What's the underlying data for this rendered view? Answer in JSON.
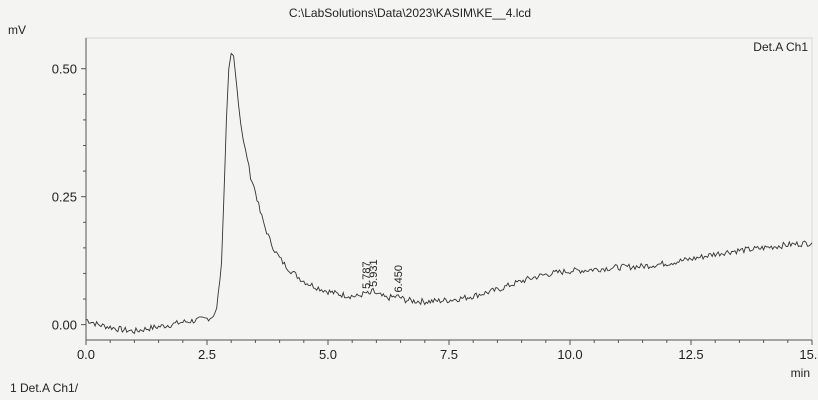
{
  "chart_data": {
    "type": "line",
    "title": "C:\\LabSolutions\\Data\\2023\\KASIM\\KE__4.lcd",
    "ylabel": "mV",
    "xlabel": "min",
    "channel_label": "Det.A Ch1",
    "footer": "1  Det.A Ch1/",
    "xlim": [
      0,
      15
    ],
    "ylim": [
      -0.03,
      0.56
    ],
    "x_ticks": [
      {
        "value": 0.0,
        "label": "0.0"
      },
      {
        "value": 2.5,
        "label": "2.5"
      },
      {
        "value": 5.0,
        "label": "5.0"
      },
      {
        "value": 7.5,
        "label": "7.5"
      },
      {
        "value": 10.0,
        "label": "10.0"
      },
      {
        "value": 12.5,
        "label": "12.5"
      },
      {
        "value": 15.0,
        "label": "15.0"
      }
    ],
    "y_ticks": [
      {
        "value": 0.0,
        "label": "0.00"
      },
      {
        "value": 0.25,
        "label": "0.25"
      },
      {
        "value": 0.5,
        "label": "0.50"
      }
    ],
    "peak_labels": [
      {
        "x": 5.787,
        "y": 0.062,
        "label": "5.787"
      },
      {
        "x": 5.931,
        "y": 0.066,
        "label": "5.931"
      },
      {
        "x": 6.45,
        "y": 0.055,
        "label": "6.450"
      }
    ],
    "series": [
      {
        "x": [
          0.0,
          0.25,
          0.5,
          0.75,
          1.0,
          1.25,
          1.5,
          1.75,
          2.0,
          2.25,
          2.5,
          2.6,
          2.7,
          2.8,
          2.85,
          2.9,
          2.95,
          3.0,
          3.05,
          3.1,
          3.15,
          3.2,
          3.25,
          3.3,
          3.4,
          3.5,
          3.6,
          3.7,
          3.8,
          3.9,
          4.0,
          4.1,
          4.2,
          4.3,
          4.4,
          4.5,
          4.6,
          4.7,
          4.8,
          4.9,
          5.0,
          5.2,
          5.4,
          5.6,
          5.787,
          5.85,
          5.931,
          6.0,
          6.2,
          6.45,
          6.6,
          6.8,
          7.0,
          7.2,
          7.5,
          7.8,
          8.0,
          8.25,
          8.5,
          8.75,
          9.0,
          9.25,
          9.5,
          9.75,
          10.0,
          10.25,
          10.5,
          10.75,
          11.0,
          11.25,
          11.5,
          11.75,
          12.0,
          12.25,
          12.5,
          12.75,
          13.0,
          13.25,
          13.5,
          13.75,
          14.0,
          14.25,
          14.5,
          14.75,
          15.0
        ],
        "y": [
          0.01,
          0.0,
          -0.005,
          -0.01,
          -0.013,
          -0.008,
          -0.004,
          0.0,
          0.005,
          0.008,
          0.012,
          0.015,
          0.03,
          0.12,
          0.25,
          0.4,
          0.5,
          0.53,
          0.525,
          0.48,
          0.43,
          0.39,
          0.36,
          0.34,
          0.29,
          0.26,
          0.22,
          0.19,
          0.165,
          0.145,
          0.13,
          0.118,
          0.108,
          0.1,
          0.092,
          0.085,
          0.08,
          0.076,
          0.072,
          0.068,
          0.065,
          0.06,
          0.057,
          0.055,
          0.062,
          0.058,
          0.066,
          0.06,
          0.052,
          0.055,
          0.048,
          0.046,
          0.045,
          0.046,
          0.048,
          0.052,
          0.056,
          0.062,
          0.068,
          0.077,
          0.085,
          0.092,
          0.098,
          0.102,
          0.105,
          0.106,
          0.108,
          0.11,
          0.112,
          0.113,
          0.114,
          0.117,
          0.12,
          0.124,
          0.128,
          0.133,
          0.138,
          0.142,
          0.145,
          0.147,
          0.15,
          0.153,
          0.156,
          0.158,
          0.16
        ]
      }
    ]
  }
}
